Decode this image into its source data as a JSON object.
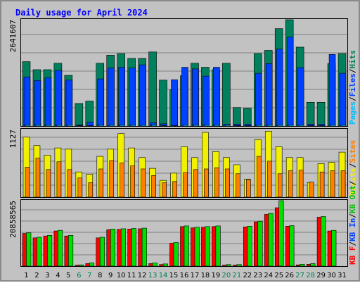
{
  "title": "Daily usage for April 2024",
  "colors": {
    "title": "#0000ff",
    "hits": "#00805c",
    "files": "#0040ff",
    "pages": "#00c0ff",
    "visits": "#f0f000",
    "sites": "#ff8000",
    "kb_in": "#00c000",
    "kb_out": "#00e000",
    "kb_f": "#ff0000",
    "weekend_day": "#00805c",
    "weekday_day": "#000000"
  },
  "chart_data": [
    {
      "type": "bar",
      "ymax_label": "2641607",
      "legend": [
        {
          "text": "Pages",
          "color": "#00c0ff"
        },
        {
          "text": "/",
          "color": "#000000"
        },
        {
          "text": "Files",
          "color": "#0040ff"
        },
        {
          "text": "/",
          "color": "#000000"
        },
        {
          "text": "Hits",
          "color": "#00805c"
        }
      ],
      "ymax": 2641607,
      "series": [
        {
          "name": "Hits",
          "values": [
            1600000,
            1400000,
            1400000,
            1560000,
            1260000,
            560000,
            620000,
            1560000,
            1760000,
            1800000,
            1680000,
            1680000,
            1840000,
            1140000,
            900000,
            1250000,
            1560000,
            1460000,
            1400000,
            1560000,
            460000,
            440000,
            1800000,
            1880000,
            2420000,
            2641607,
            1960000,
            590000,
            590000,
            1550000,
            1800000
          ]
        },
        {
          "name": "Files",
          "values": [
            1220000,
            1130000,
            1200000,
            1380000,
            1140000,
            30000,
            100000,
            1170000,
            1440000,
            1460000,
            1440000,
            1520000,
            80000,
            55000,
            1150000,
            1460000,
            1420000,
            1240000,
            1460000,
            45000,
            45000,
            45000,
            1310000,
            1550000,
            1910000,
            2210000,
            1450000,
            45000,
            45000,
            1780000,
            1310000
          ]
        },
        {
          "name": "Pages",
          "values": [
            30000,
            30000,
            30000,
            30000,
            30000,
            10000,
            10000,
            30000,
            30000,
            30000,
            30000,
            30000,
            30000,
            10000,
            10000,
            30000,
            30000,
            30000,
            30000,
            30000,
            10000,
            10000,
            30000,
            30000,
            30000,
            30000,
            30000,
            10000,
            10000,
            30000,
            30000
          ]
        }
      ]
    },
    {
      "type": "bar",
      "ymax_label": "1127",
      "legend": [
        {
          "text": "Visits",
          "color": "#f0f000"
        },
        {
          "text": "/",
          "color": "#000000"
        },
        {
          "text": "Sites",
          "color": "#ff8000"
        }
      ],
      "ymax": 1127,
      "series": [
        {
          "name": "Visits",
          "values": [
            1000,
            860,
            700,
            820,
            800,
            420,
            380,
            680,
            800,
            1060,
            820,
            660,
            480,
            280,
            400,
            840,
            660,
            1080,
            760,
            660,
            540,
            300,
            960,
            1100,
            840,
            660,
            660,
            240,
            560,
            580,
            750
          ]
        },
        {
          "name": "Sites",
          "values": [
            500,
            650,
            460,
            590,
            460,
            320,
            240,
            470,
            610,
            570,
            520,
            470,
            360,
            240,
            260,
            410,
            460,
            470,
            490,
            470,
            390,
            290,
            680,
            600,
            390,
            440,
            450,
            250,
            420,
            440,
            440
          ]
        }
      ]
    },
    {
      "type": "bar",
      "ymax_label": "20858565",
      "legend": [
        {
          "text": "KB F",
          "color": "#ff0000"
        },
        {
          "text": "/",
          "color": "#000000"
        },
        {
          "text": "KB In",
          "color": "#0040ff"
        },
        {
          "text": "/",
          "color": "#000000"
        },
        {
          "text": "KB Out",
          "color": "#00c000"
        },
        {
          "text": "/",
          "color": "#000000"
        }
      ],
      "ymax": 20858565,
      "series": [
        {
          "name": "KB F",
          "values": [
            10400000,
            9000000,
            9600000,
            11200000,
            9600000,
            300000,
            800000,
            9000000,
            11600000,
            11700000,
            11800000,
            11900000,
            800000,
            500000,
            7300000,
            12600000,
            12200000,
            12400000,
            12600000,
            300000,
            300000,
            12500000,
            14100000,
            16500000,
            18600000,
            12700000,
            400000,
            600000,
            15600000,
            11200000,
            0
          ]
        },
        {
          "name": "KB Out",
          "values": [
            10600000,
            9200000,
            9800000,
            11400000,
            9800000,
            400000,
            1000000,
            9200000,
            11800000,
            11900000,
            12000000,
            12100000,
            1000000,
            700000,
            7500000,
            12800000,
            12400000,
            12600000,
            12800000,
            500000,
            500000,
            12700000,
            14300000,
            16800000,
            20858565,
            12900000,
            600000,
            800000,
            15800000,
            11400000,
            0
          ]
        }
      ]
    }
  ],
  "days": [
    "1",
    "2",
    "3",
    "4",
    "5",
    "6",
    "7",
    "8",
    "9",
    "10",
    "11",
    "12",
    "13",
    "14",
    "15",
    "16",
    "17",
    "18",
    "19",
    "20",
    "21",
    "22",
    "23",
    "24",
    "25",
    "26",
    "27",
    "28",
    "29",
    "30",
    "31"
  ],
  "weekend": [
    false,
    false,
    false,
    false,
    false,
    true,
    true,
    false,
    false,
    false,
    false,
    false,
    true,
    true,
    false,
    false,
    false,
    false,
    false,
    true,
    true,
    false,
    false,
    false,
    false,
    false,
    true,
    true,
    false,
    false,
    false
  ]
}
